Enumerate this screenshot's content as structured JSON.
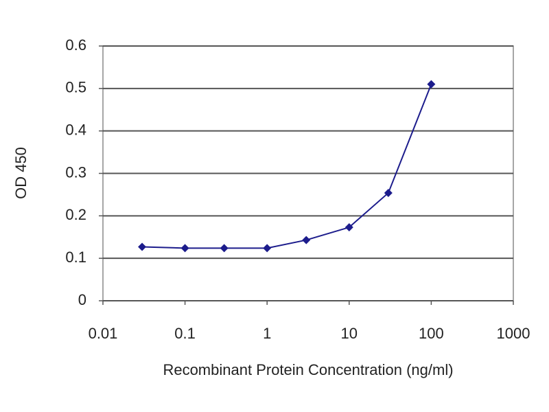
{
  "chart_data": {
    "type": "line",
    "x_label": "Recombinant Protein Concentration (ng/ml)",
    "y_label": "OD 450",
    "x": [
      0.03,
      0.1,
      0.3,
      1,
      3,
      10,
      30,
      100
    ],
    "series": [
      {
        "name": "OD 450",
        "color": "#1c1c8c",
        "values": [
          0.127,
          0.124,
          0.124,
          0.124,
          0.143,
          0.173,
          0.254,
          0.51
        ]
      }
    ],
    "xlim": [
      0.01,
      1000
    ],
    "xticks": [
      0.01,
      0.1,
      1,
      10,
      100,
      1000
    ],
    "xlog": true,
    "ylim": [
      0,
      0.6
    ],
    "yticks": [
      0,
      0.1,
      0.2,
      0.3,
      0.4,
      0.5,
      0.6
    ],
    "grid": true
  }
}
